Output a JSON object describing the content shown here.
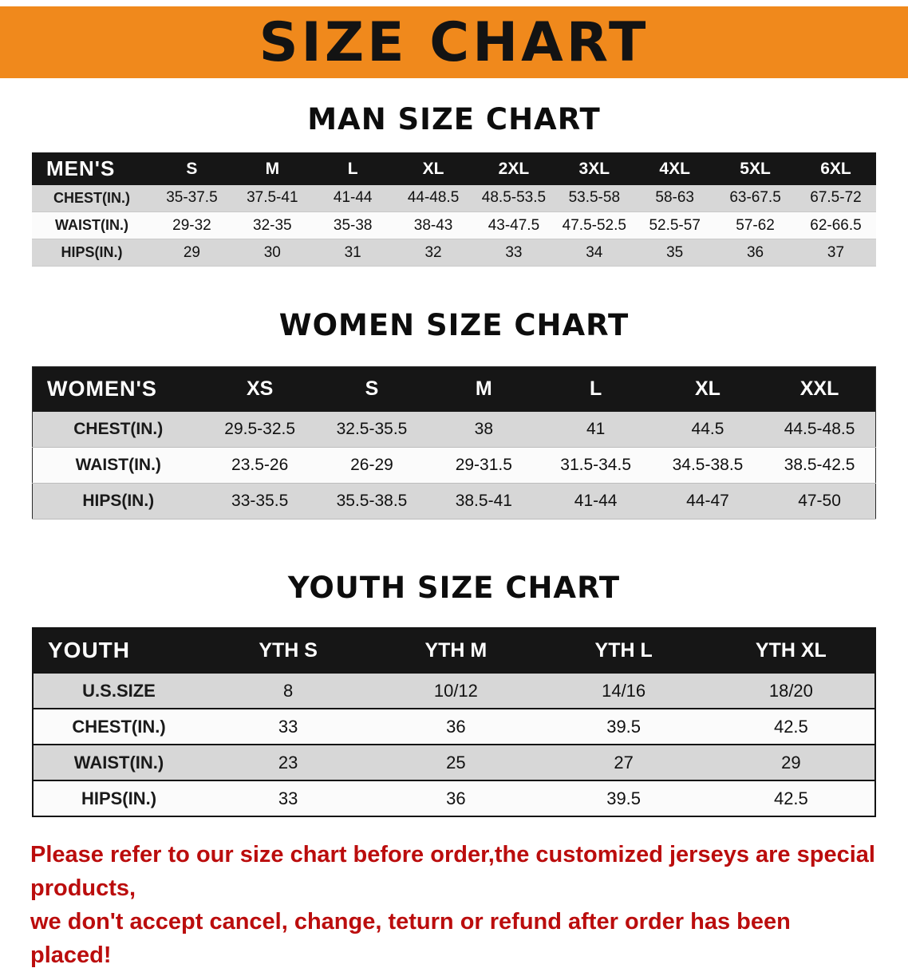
{
  "banner": {
    "title": "SIZE CHART"
  },
  "colors": {
    "banner_bg": "#f0891c",
    "header_bg": "#161616",
    "row_alt": "#d7d7d7",
    "row_plain": "#fbfbfb",
    "note_red": "#bb0d0d"
  },
  "sections": [
    {
      "id": "men",
      "title": "MAN SIZE CHART",
      "corner_label": "MEN'S",
      "columns": [
        "S",
        "M",
        "L",
        "XL",
        "2XL",
        "3XL",
        "4XL",
        "5XL",
        "6XL"
      ],
      "rows": [
        {
          "label": "CHEST(IN.)",
          "values": [
            "35-37.5",
            "37.5-41",
            "41-44",
            "44-48.5",
            "48.5-53.5",
            "53.5-58",
            "58-63",
            "63-67.5",
            "67.5-72"
          ]
        },
        {
          "label": "WAIST(IN.)",
          "values": [
            "29-32",
            "32-35",
            "35-38",
            "38-43",
            "43-47.5",
            "47.5-52.5",
            "52.5-57",
            "57-62",
            "62-66.5"
          ]
        },
        {
          "label": "HIPS(IN.)",
          "values": [
            "29",
            "30",
            "31",
            "32",
            "33",
            "34",
            "35",
            "36",
            "37"
          ]
        }
      ]
    },
    {
      "id": "women",
      "title": "WOMEN SIZE CHART",
      "corner_label": "WOMEN'S",
      "columns": [
        "XS",
        "S",
        "M",
        "L",
        "XL",
        "XXL"
      ],
      "rows": [
        {
          "label": "CHEST(IN.)",
          "values": [
            "29.5-32.5",
            "32.5-35.5",
            "38",
            "41",
            "44.5",
            "44.5-48.5"
          ]
        },
        {
          "label": "WAIST(IN.)",
          "values": [
            "23.5-26",
            "26-29",
            "29-31.5",
            "31.5-34.5",
            "34.5-38.5",
            "38.5-42.5"
          ]
        },
        {
          "label": "HIPS(IN.)",
          "values": [
            "33-35.5",
            "35.5-38.5",
            "38.5-41",
            "41-44",
            "44-47",
            "47-50"
          ]
        }
      ]
    },
    {
      "id": "youth",
      "title": "YOUTH SIZE CHART",
      "corner_label": "YOUTH",
      "columns": [
        "YTH S",
        "YTH M",
        "YTH L",
        "YTH XL"
      ],
      "rows": [
        {
          "label": "U.S.SIZE",
          "values": [
            "8",
            "10/12",
            "14/16",
            "18/20"
          ]
        },
        {
          "label": "CHEST(IN.)",
          "values": [
            "33",
            "36",
            "39.5",
            "42.5"
          ]
        },
        {
          "label": "WAIST(IN.)",
          "values": [
            "23",
            "25",
            "27",
            "29"
          ]
        },
        {
          "label": "HIPS(IN.)",
          "values": [
            "33",
            "36",
            "39.5",
            "42.5"
          ]
        }
      ]
    }
  ],
  "note": {
    "line1": "Please refer to our size chart before order,the customized jerseys are special products,",
    "line2": "we don't accept cancel, change, teturn or refund after order has been placed!"
  }
}
